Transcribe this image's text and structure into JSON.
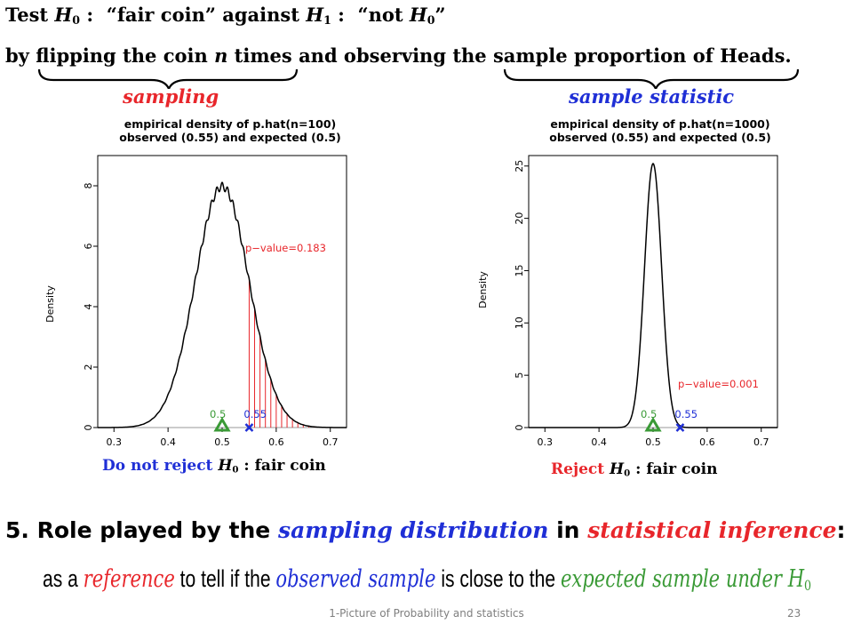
{
  "header": {
    "test_word": "Test",
    "h0_symbol": "H",
    "h0_sub": "0",
    "colon1": " :",
    "fair_coin_quote": "“fair coin”",
    "against_word": "against",
    "h1_symbol": "H",
    "h1_sub": "1",
    "colon2": " :",
    "not_h0_open": "“not",
    "not_h0_symbol": "H",
    "not_h0_sub": "0",
    "not_h0_close": "”",
    "by_word": "by",
    "flip_phrase_a": "flipping the coin",
    "n_symbol": "n",
    "flip_phrase_b": "times",
    "and_observing": "and observing the",
    "sample_prop_phrase": "sample proportion of Heads",
    "period": "."
  },
  "braces": {
    "sampling_label": "sampling",
    "statistic_label": "sample statistic"
  },
  "colors": {
    "red": "#e8262b",
    "blue": "#1f2fd6",
    "green": "#3a9a36",
    "curve": "#000000"
  },
  "chart_data": [
    {
      "type": "line",
      "title": "empirical density of p.hat(n=100)",
      "subtitle": "observed (0.55) and expected (0.5)",
      "ylabel": "Density",
      "xlim": [
        0.27,
        0.73
      ],
      "ylim": [
        0,
        9
      ],
      "xticks": [
        "0.3",
        "0.4",
        "0.5",
        "0.6",
        "0.7"
      ],
      "xtick_values": [
        0.3,
        0.4,
        0.5,
        0.6,
        0.7
      ],
      "yticks": [
        "0",
        "2",
        "4",
        "6",
        "8"
      ],
      "ytick_values": [
        0,
        2,
        4,
        6,
        8
      ],
      "n": 100,
      "expected": 0.5,
      "observed": 0.55,
      "expected_label": "0.5",
      "observed_label": "0.55",
      "pvalue_label": "p−value=0.183",
      "shade_from": 0.55,
      "ripple": 0.55
    },
    {
      "type": "line",
      "title": "empirical density of p.hat(n=1000)",
      "subtitle": "observed (0.55) and expected (0.5)",
      "ylabel": "Density",
      "xlim": [
        0.27,
        0.73
      ],
      "ylim": [
        0,
        26
      ],
      "xticks": [
        "0.3",
        "0.4",
        "0.5",
        "0.6",
        "0.7"
      ],
      "xtick_values": [
        0.3,
        0.4,
        0.5,
        0.6,
        0.7
      ],
      "yticks": [
        "0",
        "5",
        "10",
        "15",
        "20",
        "25"
      ],
      "ytick_values": [
        0,
        5,
        10,
        15,
        20,
        25
      ],
      "n": 1000,
      "expected": 0.5,
      "observed": 0.55,
      "expected_label": "0.5",
      "observed_label": "0.55",
      "pvalue_label": "p−value=0.001",
      "shade_from": 0.55,
      "ripple": 0
    }
  ],
  "verdicts": {
    "left_prefix": "Do not reject",
    "left_symbol": "H",
    "left_sub": "0",
    "left_suffix": " :  fair coin",
    "right_prefix": "Reject",
    "right_symbol": "H",
    "right_sub": "0",
    "right_suffix": " :  fair coin"
  },
  "section5": {
    "prefix": "5. Role played by the",
    "sampling_distribution": "sampling distribution",
    "in_word": "in",
    "statistical_inference": "statistical inference",
    "colon": ":"
  },
  "role_line": {
    "as_a": "as a",
    "reference": "reference",
    "to_tell": "to tell if the",
    "observed_sample": "observed sample",
    "is_close": "is close to the",
    "expected_sample": "expected sample under",
    "h0_symbol": "H",
    "h0_sub": "0"
  },
  "footer": {
    "text": "1-Picture of Probability and statistics",
    "slide_number": "23"
  }
}
